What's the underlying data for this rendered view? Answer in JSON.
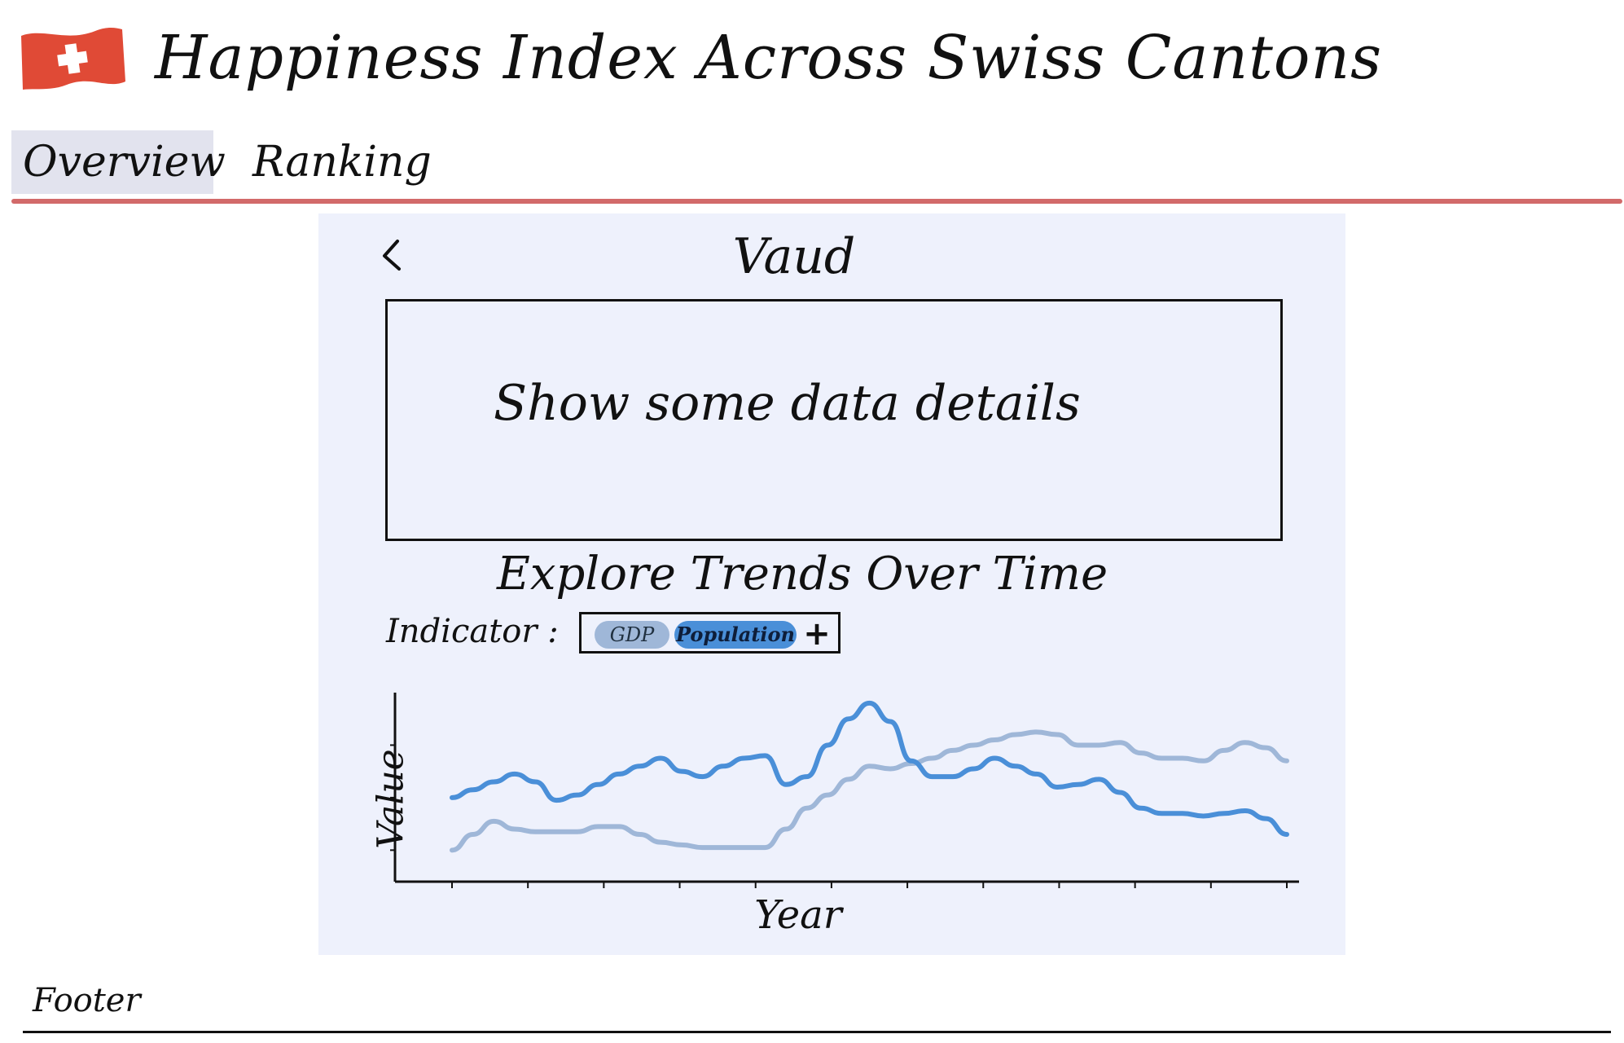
{
  "header": {
    "title": "Happiness Index Across Swiss Cantons",
    "flag_icon": "swiss-flag-icon",
    "flag_color": "#e04a36"
  },
  "tabs": [
    {
      "label": "Overview",
      "active": true
    },
    {
      "label": "Ranking",
      "active": false
    }
  ],
  "accent_color": "#d26a6a",
  "panel": {
    "back_icon": "chevron-left-icon",
    "title": "Vaud",
    "details_text": "Show some data details",
    "explore_title": "Explore Trends Over Time",
    "indicator_label": "Indicator :",
    "indicators": [
      {
        "label": "GDP",
        "color": "#9fb7d8"
      },
      {
        "label": "Population",
        "color": "#4a8fd8"
      }
    ],
    "add_icon": "plus-icon"
  },
  "chart_data": {
    "type": "line",
    "xlabel": "Year",
    "ylabel": "Value",
    "x": [
      0,
      1,
      2,
      3,
      4,
      5,
      6,
      7,
      8,
      9,
      10,
      11,
      12,
      13,
      14,
      15,
      16,
      17,
      18,
      19,
      20,
      21,
      22,
      23,
      24,
      25,
      26,
      27,
      28,
      29,
      30,
      31,
      32,
      33,
      34,
      35,
      36,
      37,
      38,
      39,
      40
    ],
    "series": [
      {
        "color": "#4a8fd8",
        "values": [
          1.0,
          1.15,
          1.3,
          1.45,
          1.3,
          0.95,
          1.05,
          1.25,
          1.45,
          1.6,
          1.75,
          1.5,
          1.4,
          1.6,
          1.75,
          1.8,
          1.25,
          1.4,
          2.0,
          2.5,
          2.8,
          2.45,
          1.7,
          1.4,
          1.4,
          1.55,
          1.75,
          1.6,
          1.45,
          1.2,
          1.25,
          1.35,
          1.1,
          0.8,
          0.7,
          0.7,
          0.65,
          0.7,
          0.75,
          0.6,
          0.3
        ]
      },
      {
        "color": "#9fb7d8",
        "values": [
          0.0,
          0.3,
          0.55,
          0.4,
          0.35,
          0.35,
          0.35,
          0.45,
          0.45,
          0.3,
          0.15,
          0.1,
          0.05,
          0.05,
          0.05,
          0.05,
          0.4,
          0.8,
          1.05,
          1.35,
          1.6,
          1.55,
          1.65,
          1.75,
          1.9,
          2.0,
          2.1,
          2.2,
          2.25,
          2.2,
          2.0,
          2.0,
          2.05,
          1.85,
          1.75,
          1.75,
          1.7,
          1.9,
          2.05,
          1.95,
          1.7
        ]
      }
    ],
    "ylim": [
      -0.6,
      3.0
    ],
    "grid": false,
    "legend": "none"
  },
  "footer": {
    "text": "Footer"
  }
}
